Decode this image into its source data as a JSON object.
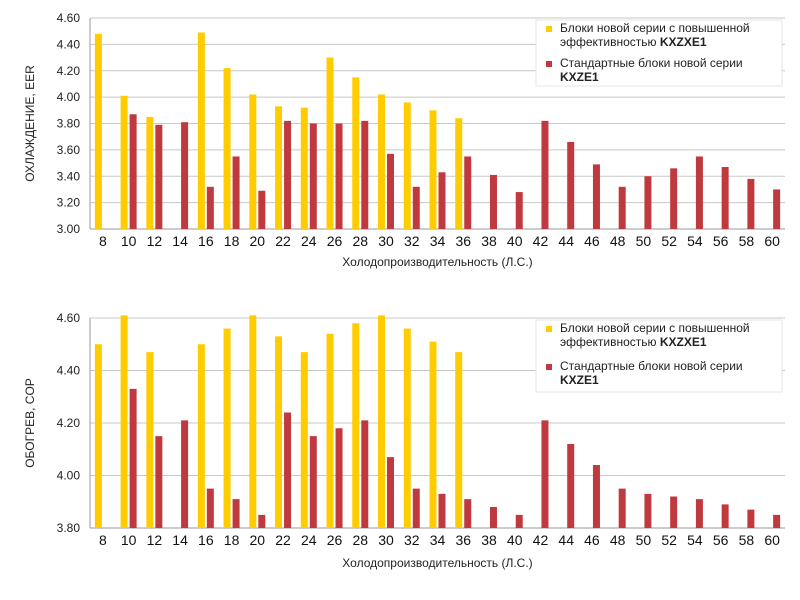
{
  "chart_data": [
    {
      "type": "bar",
      "ylabel": "ОХЛАЖДЕНИЕ, EER",
      "xlabel": "Холодопроизводительность (Л.С.)",
      "ylim": [
        3.0,
        4.6
      ],
      "yticks": [
        "3.00",
        "3.20",
        "3.40",
        "3.60",
        "3.80",
        "4.00",
        "4.20",
        "4.40",
        "4.60"
      ],
      "grid": "horizontal",
      "legend_position": "top-right",
      "categories": [
        "8",
        "10",
        "12",
        "14",
        "16",
        "18",
        "20",
        "22",
        "24",
        "26",
        "28",
        "30",
        "32",
        "34",
        "36",
        "38",
        "40",
        "42",
        "44",
        "46",
        "48",
        "50",
        "52",
        "54",
        "56",
        "58",
        "60"
      ],
      "series": [
        {
          "name_line1": "Блоки новой серии с повышенной",
          "name_line2_prefix": "эффективностью ",
          "name_line2_bold": "KXZXE1",
          "color": "#FFCC00",
          "values": [
            4.48,
            4.01,
            3.85,
            null,
            4.49,
            4.22,
            4.02,
            3.93,
            3.92,
            4.3,
            4.15,
            4.02,
            3.96,
            3.9,
            3.84,
            null,
            null,
            null,
            null,
            null,
            null,
            null,
            null,
            null,
            null,
            null,
            null
          ]
        },
        {
          "name_line1": "Стандартные блоки новой серии",
          "name_line2_prefix": "",
          "name_line2_bold": "KXZE1",
          "color": "#C0393F",
          "values": [
            null,
            3.87,
            3.79,
            3.81,
            3.32,
            3.55,
            3.29,
            3.82,
            3.8,
            3.8,
            3.82,
            3.57,
            3.32,
            3.43,
            3.55,
            3.41,
            3.28,
            3.82,
            3.66,
            3.49,
            3.32,
            3.4,
            3.46,
            3.55,
            3.47,
            3.38,
            3.3
          ]
        }
      ]
    },
    {
      "type": "bar",
      "ylabel": "ОБОГРЕВ, COP",
      "xlabel": "Холодопроизводительность (Л.С.)",
      "ylim": [
        3.8,
        4.6
      ],
      "yticks": [
        "3.80",
        "4.00",
        "4.20",
        "4.40",
        "4.60"
      ],
      "grid": "horizontal",
      "legend_position": "top-right",
      "categories": [
        "8",
        "10",
        "12",
        "14",
        "16",
        "18",
        "20",
        "22",
        "24",
        "26",
        "28",
        "30",
        "32",
        "34",
        "36",
        "38",
        "40",
        "42",
        "44",
        "46",
        "48",
        "50",
        "52",
        "54",
        "56",
        "58",
        "60"
      ],
      "series": [
        {
          "name_line1": "Блоки новой серии с повышенной",
          "name_line2_prefix": "эффективностью ",
          "name_line2_bold": "KXZXE1",
          "color": "#FFCC00",
          "values": [
            4.5,
            4.61,
            4.47,
            null,
            4.5,
            4.56,
            4.61,
            4.53,
            4.47,
            4.54,
            4.58,
            4.61,
            4.56,
            4.51,
            4.47,
            null,
            null,
            null,
            null,
            null,
            null,
            null,
            null,
            null,
            null,
            null,
            null
          ]
        },
        {
          "name_line1": "Стандартные блоки новой серии",
          "name_line2_prefix": "",
          "name_line2_bold": "KXZE1",
          "color": "#C0393F",
          "values": [
            null,
            4.33,
            4.15,
            4.21,
            3.95,
            3.91,
            3.85,
            4.24,
            4.15,
            4.18,
            4.21,
            4.07,
            3.95,
            3.93,
            3.91,
            3.88,
            3.85,
            4.21,
            4.12,
            4.04,
            3.95,
            3.93,
            3.92,
            3.91,
            3.89,
            3.87,
            3.85
          ]
        }
      ]
    }
  ]
}
